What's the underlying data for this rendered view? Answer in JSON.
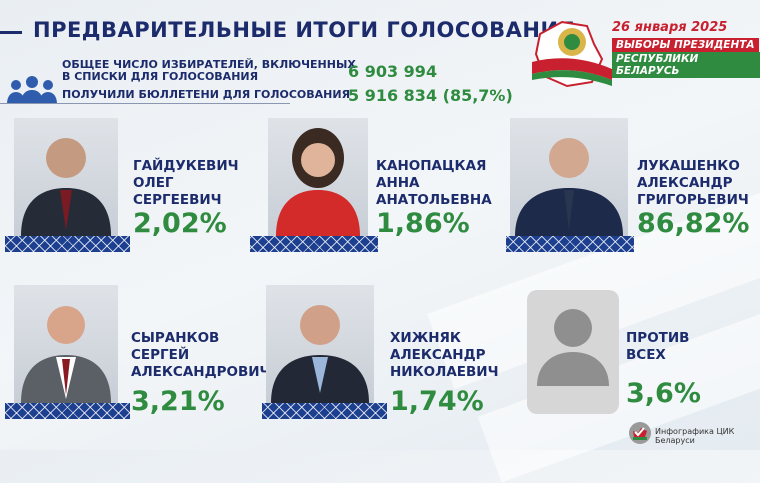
{
  "header": {
    "title": "ПРЕДВАРИТЕЛЬНЫЕ ИТОГИ ГОЛОСОВАНИЯ",
    "total_voters_label_line1": "ОБЩЕЕ ЧИСЛО ИЗБИРАТЕЛЕЙ, ВКЛЮЧЕННЫХ",
    "total_voters_label_line2": "В СПИСКИ ДЛЯ ГОЛОСОВАНИЯ",
    "total_voters_value": "6 903 994",
    "ballots_label": "ПОЛУЧИЛИ БЮЛЛЕТЕНИ ДЛЯ ГОЛОСОВАНИЯ",
    "ballots_value": "5 916 834 (85,7%)",
    "icon": "people-group-icon"
  },
  "election_logo": {
    "date": "26 января 2025",
    "line1": "ВЫБОРЫ ПРЕЗИДЕНТА",
    "line2": "РЕСПУБЛИКИ БЕЛАРУСЬ",
    "colors": {
      "red": "#c8202f",
      "green": "#2e8b3f"
    }
  },
  "candidates": [
    {
      "name1": "ГАЙДУКЕВИЧ",
      "name2": "ОЛЕГ",
      "name3": "СЕРГЕЕВИЧ",
      "percent": "2,02%",
      "result_fraction": 0.0202
    },
    {
      "name1": "КАНОПАЦКАЯ",
      "name2": "АННА",
      "name3": "АНАТОЛЬЕВНА",
      "percent": "1,86%",
      "result_fraction": 0.0186
    },
    {
      "name1": "ЛУКАШЕНКО",
      "name2": "АЛЕКСАНДР",
      "name3": "ГРИГОРЬЕВИЧ",
      "percent": "86,82%",
      "result_fraction": 0.8682
    },
    {
      "name1": "СЫРАНКОВ",
      "name2": "СЕРГЕЙ",
      "name3": "АЛЕКСАНДРОВИЧ",
      "percent": "3,21%",
      "result_fraction": 0.0321
    },
    {
      "name1": "ХИЖНЯК",
      "name2": "АЛЕКСАНДР",
      "name3": "НИКОЛАЕВИЧ",
      "percent": "1,74%",
      "result_fraction": 0.0174
    }
  ],
  "against_all": {
    "line1": "ПРОТИВ",
    "line2": "ВСЕХ",
    "percent": "3,6%",
    "icon": "user-silhouette-icon"
  },
  "footer": {
    "text": "Инфографика ЦИК Беларуси"
  },
  "colors": {
    "navy": "#1c2b6b",
    "green": "#2e8b3f",
    "ornament": "#1d3f8f"
  }
}
